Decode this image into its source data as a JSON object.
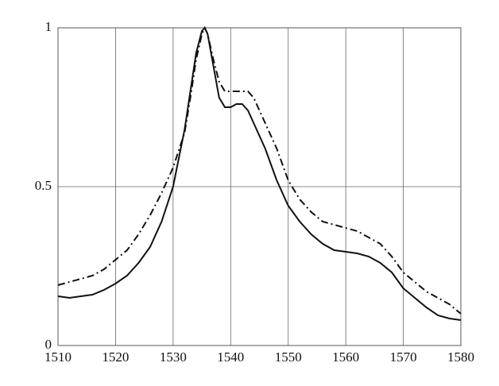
{
  "chart_data": {
    "type": "line",
    "x": [
      1510,
      1512,
      1514,
      1516,
      1518,
      1520,
      1522,
      1524,
      1526,
      1528,
      1530,
      1532,
      1533,
      1534,
      1535,
      1535.5,
      1536,
      1537,
      1538,
      1539,
      1540,
      1541,
      1542,
      1543,
      1544,
      1546,
      1548,
      1550,
      1552,
      1554,
      1556,
      1558,
      1560,
      1562,
      1564,
      1566,
      1568,
      1570,
      1572,
      1574,
      1576,
      1578,
      1580
    ],
    "series": [
      {
        "color": "#111111",
        "style": "solid",
        "values": [
          0.155,
          0.15,
          0.155,
          0.16,
          0.175,
          0.195,
          0.22,
          0.26,
          0.31,
          0.39,
          0.5,
          0.68,
          0.8,
          0.92,
          0.99,
          1.0,
          0.98,
          0.88,
          0.78,
          0.75,
          0.75,
          0.76,
          0.76,
          0.74,
          0.7,
          0.62,
          0.52,
          0.44,
          0.39,
          0.35,
          0.32,
          0.3,
          0.295,
          0.29,
          0.28,
          0.26,
          0.23,
          0.18,
          0.15,
          0.12,
          0.095,
          0.085,
          0.08
        ]
      },
      {
        "color": "#111111",
        "style": "dashdot",
        "values": [
          0.19,
          0.2,
          0.21,
          0.22,
          0.24,
          0.27,
          0.3,
          0.35,
          0.41,
          0.48,
          0.56,
          0.67,
          0.78,
          0.9,
          0.98,
          1.0,
          0.98,
          0.9,
          0.83,
          0.8,
          0.8,
          0.8,
          0.8,
          0.8,
          0.78,
          0.7,
          0.62,
          0.52,
          0.46,
          0.42,
          0.39,
          0.38,
          0.37,
          0.36,
          0.34,
          0.32,
          0.28,
          0.23,
          0.2,
          0.17,
          0.15,
          0.13,
          0.1
        ]
      }
    ],
    "xlim": [
      1510,
      1580
    ],
    "xticks": [
      1510,
      1520,
      1530,
      1540,
      1550,
      1560,
      1570,
      1580
    ],
    "ylim": [
      0,
      1
    ],
    "yticks": [
      0,
      0.5,
      1
    ],
    "grid": true
  }
}
